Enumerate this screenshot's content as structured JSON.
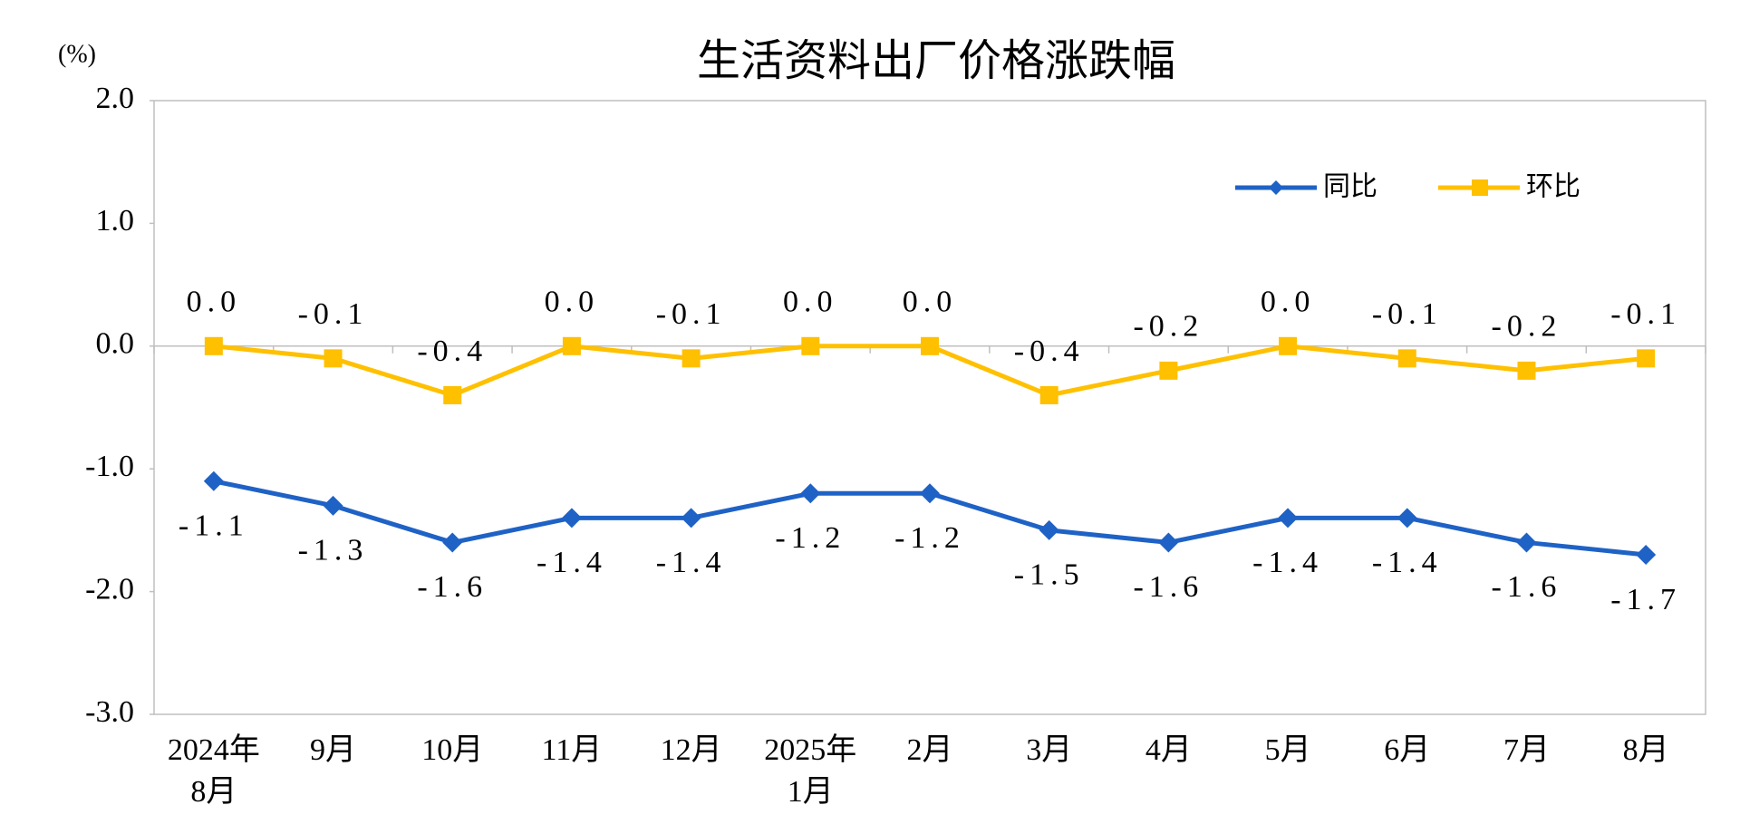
{
  "chart_data": {
    "type": "line",
    "title": "生活资料出厂价格涨跌幅",
    "y_unit": "(%)",
    "categories": [
      "2024年\n8月",
      "9月",
      "10月",
      "11月",
      "12月",
      "2025年\n1月",
      "2月",
      "3月",
      "4月",
      "5月",
      "6月",
      "7月",
      "8月"
    ],
    "series": [
      {
        "name": "同比",
        "color": "#1f62c6",
        "marker": "diamond",
        "label_side": "below",
        "values": [
          -1.1,
          -1.3,
          -1.6,
          -1.4,
          -1.4,
          -1.2,
          -1.2,
          -1.5,
          -1.6,
          -1.4,
          -1.4,
          -1.6,
          -1.7
        ],
        "value_labels": [
          "-1.1",
          "-1.3",
          "-1.6",
          "-1.4",
          "-1.4",
          "-1.2",
          "-1.2",
          "-1.5",
          "-1.6",
          "-1.4",
          "-1.4",
          "-1.6",
          "-1.7"
        ]
      },
      {
        "name": "环比",
        "color": "#ffc000",
        "marker": "square",
        "label_side": "above",
        "values": [
          0,
          -0.1,
          -0.4,
          0,
          -0.1,
          0,
          0,
          -0.4,
          -0.2,
          0,
          -0.1,
          -0.2,
          -0.1
        ],
        "value_labels": [
          "0.0",
          "-0.1",
          "-0.4",
          "0.0",
          "-0.1",
          "0.0",
          "0.0",
          "-0.4",
          "-0.2",
          "0.0",
          "-0.1",
          "-0.2",
          "-0.1"
        ]
      }
    ],
    "ylim": [
      -3,
      2
    ],
    "yticks": [
      {
        "value": -3,
        "label": "-3.0"
      },
      {
        "value": -2,
        "label": "-2.0"
      },
      {
        "value": -1,
        "label": "-1.0"
      },
      {
        "value": 0,
        "label": "0.0"
      },
      {
        "value": 1,
        "label": "1.0"
      },
      {
        "value": 2,
        "label": "2.0"
      }
    ],
    "grid": false,
    "legend": "upper right"
  }
}
